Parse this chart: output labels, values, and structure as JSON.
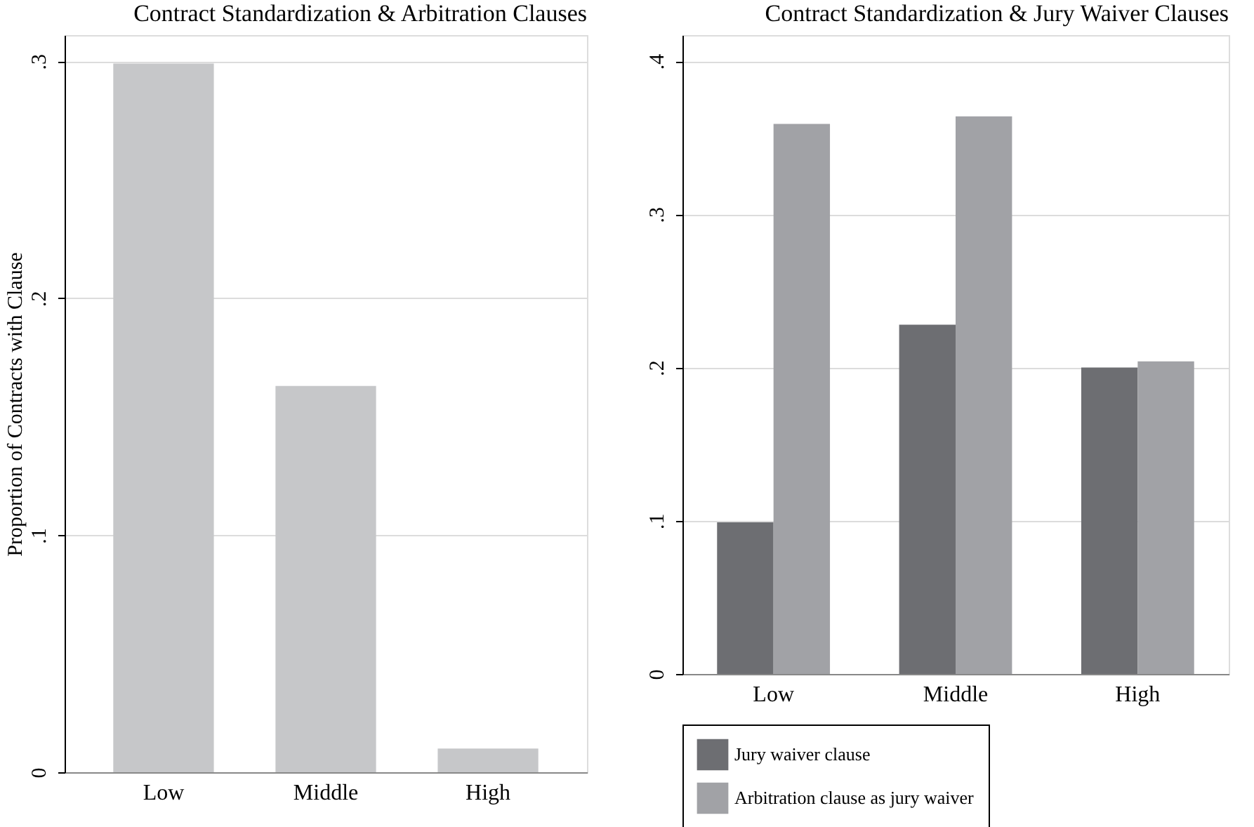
{
  "chart_data": [
    {
      "type": "bar",
      "title": "Contract Standardization & Arbitration Clauses",
      "ylabel": "Proportion of Contracts with Clause",
      "categories": [
        "Low",
        "Middle",
        "High"
      ],
      "series": [
        {
          "color": "#c6c7c9",
          "values": [
            0.299,
            0.163,
            0.01
          ]
        }
      ],
      "ylim": [
        0,
        0.311
      ],
      "yticks": [
        {
          "value": 0,
          "label": "0"
        },
        {
          "value": 0.1,
          "label": ".1"
        },
        {
          "value": 0.2,
          "label": ".2"
        },
        {
          "value": 0.3,
          "label": ".3"
        }
      ],
      "grid": "y",
      "legend": false
    },
    {
      "type": "bar",
      "title": "Contract Standardization & Jury Waiver Clauses",
      "categories": [
        "Low",
        "Middle",
        "High"
      ],
      "series": [
        {
          "name": "Jury waiver clause",
          "color": "#6d6e72",
          "values": [
            0.099,
            0.228,
            0.2
          ]
        },
        {
          "name": "Arbitration clause as jury waiver",
          "color": "#a1a2a6",
          "values": [
            0.359,
            0.364,
            0.204
          ]
        }
      ],
      "ylim": [
        0,
        0.417
      ],
      "yticks": [
        {
          "value": 0,
          "label": "0"
        },
        {
          "value": 0.1,
          "label": ".1"
        },
        {
          "value": 0.2,
          "label": ".2"
        },
        {
          "value": 0.3,
          "label": ".3"
        },
        {
          "value": 0.4,
          "label": ".4"
        }
      ],
      "grid": "y",
      "legend": "bottom",
      "stacked": false
    }
  ]
}
